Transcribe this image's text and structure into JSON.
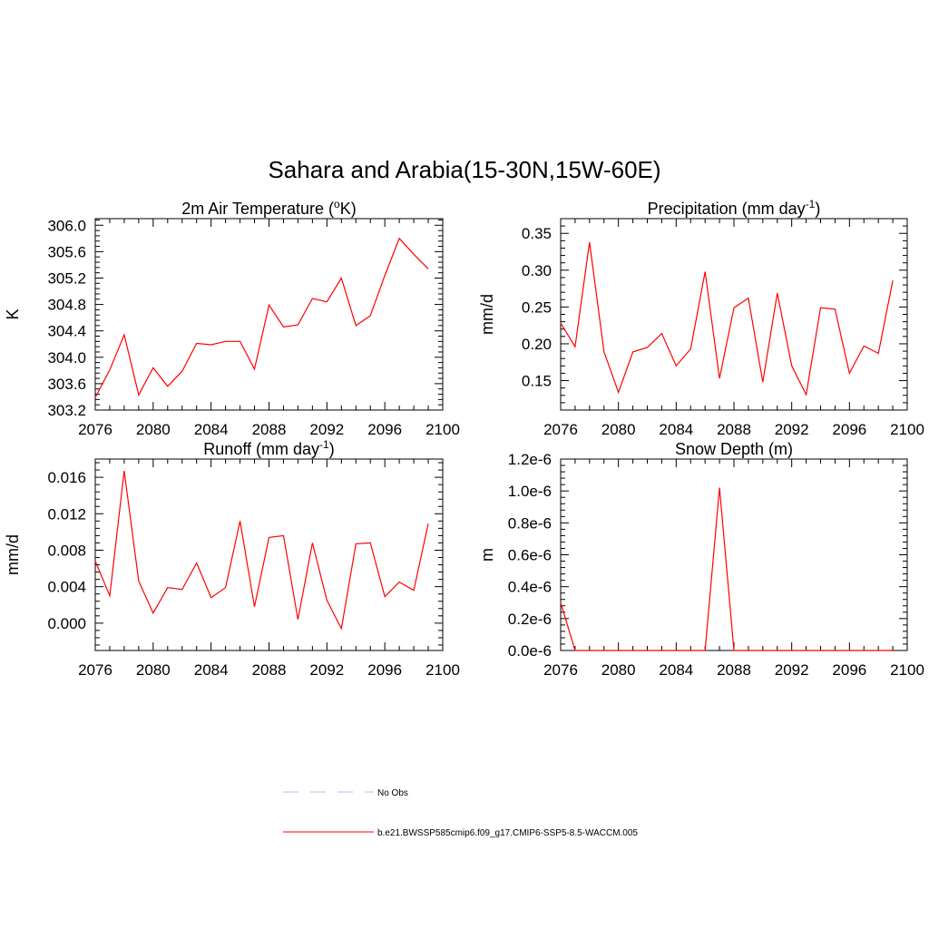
{
  "title": "Sahara and Arabia(15-30N,15W-60E)",
  "colors": {
    "model": "#ff0000",
    "obs": "#b9b9ee",
    "axis": "#000000"
  },
  "legend": [
    {
      "label": "No Obs",
      "style": "dashed",
      "color": "#b9b9ee"
    },
    {
      "label": "b.e21.BWSSP585cmip6.f09_g17.CMIP6-SSP5-8.5-WACCM.005",
      "style": "solid",
      "color": "#ff0000"
    }
  ],
  "chart_data": [
    {
      "type": "line",
      "title": "2m Air Temperature (",
      "title_sup": "o",
      "title_tail": "K)",
      "ylabel": "K",
      "xlim": [
        2076,
        2100
      ],
      "ylim": [
        303.2,
        306.1
      ],
      "xticks": [
        2076,
        2080,
        2084,
        2088,
        2092,
        2096,
        2100
      ],
      "yticks": [
        "303.2",
        "303.6",
        "304.0",
        "304.4",
        "304.8",
        "305.2",
        "305.6",
        "306.0"
      ],
      "x": [
        2076,
        2077,
        2078,
        2079,
        2080,
        2081,
        2082,
        2083,
        2084,
        2085,
        2086,
        2087,
        2088,
        2089,
        2090,
        2091,
        2092,
        2093,
        2094,
        2095,
        2096,
        2097,
        2098,
        2099
      ],
      "series": [
        {
          "values": [
            303.39,
            303.81,
            304.34,
            303.43,
            303.84,
            303.56,
            303.79,
            304.21,
            304.19,
            304.24,
            304.24,
            303.82,
            304.79,
            304.46,
            304.49,
            304.89,
            304.84,
            305.2,
            304.48,
            304.63,
            305.24,
            305.8,
            305.56,
            305.34
          ]
        }
      ]
    },
    {
      "type": "line",
      "title": "Precipitation (mm day",
      "title_sup": "-1",
      "title_tail": ")",
      "ylabel": "mm/d",
      "xlim": [
        2076,
        2100
      ],
      "ylim": [
        0.11,
        0.37
      ],
      "xticks": [
        2076,
        2080,
        2084,
        2088,
        2092,
        2096,
        2100
      ],
      "yticks": [
        "0.15",
        "0.20",
        "0.25",
        "0.30",
        "0.35"
      ],
      "x": [
        2076,
        2077,
        2078,
        2079,
        2080,
        2081,
        2082,
        2083,
        2084,
        2085,
        2086,
        2087,
        2088,
        2089,
        2090,
        2091,
        2092,
        2093,
        2094,
        2095,
        2096,
        2097,
        2098,
        2099
      ],
      "series": [
        {
          "values": [
            0.228,
            0.196,
            0.338,
            0.189,
            0.134,
            0.189,
            0.195,
            0.214,
            0.17,
            0.193,
            0.298,
            0.153,
            0.249,
            0.262,
            0.148,
            0.269,
            0.17,
            0.131,
            0.249,
            0.247,
            0.16,
            0.197,
            0.187,
            0.286
          ]
        }
      ]
    },
    {
      "type": "line",
      "title": "Runoff (mm day",
      "title_sup": "-1",
      "title_tail": ")",
      "ylabel": "mm/d",
      "xlim": [
        2076,
        2100
      ],
      "ylim": [
        -0.003,
        0.018
      ],
      "xticks": [
        2076,
        2080,
        2084,
        2088,
        2092,
        2096,
        2100
      ],
      "yticks": [
        "0.000",
        "0.004",
        "0.008",
        "0.012",
        "0.016"
      ],
      "x": [
        2076,
        2077,
        2078,
        2079,
        2080,
        2081,
        2082,
        2083,
        2084,
        2085,
        2086,
        2087,
        2088,
        2089,
        2090,
        2091,
        2092,
        2093,
        2094,
        2095,
        2096,
        2097,
        2098,
        2099
      ],
      "series": [
        {
          "values": [
            0.0068,
            0.003,
            0.0167,
            0.0046,
            0.0011,
            0.0039,
            0.0037,
            0.0066,
            0.0028,
            0.0039,
            0.0112,
            0.0018,
            0.0094,
            0.0096,
            0.0004,
            0.0088,
            0.0025,
            -0.0006,
            0.0087,
            0.0088,
            0.0029,
            0.0045,
            0.0036,
            0.0109
          ]
        }
      ]
    },
    {
      "type": "line",
      "title": "Snow Depth (m)",
      "title_sup": "",
      "title_tail": "",
      "ylabel": "m",
      "xlim": [
        2076,
        2100
      ],
      "ylim": [
        0,
        1.2e-06
      ],
      "xticks": [
        2076,
        2080,
        2084,
        2088,
        2092,
        2096,
        2100
      ],
      "yticks": [
        "0.0e-6",
        "0.2e-6",
        "0.4e-6",
        "0.6e-6",
        "0.8e-6",
        "1.0e-6",
        "1.2e-6"
      ],
      "x": [
        2076,
        2077,
        2078,
        2079,
        2080,
        2081,
        2082,
        2083,
        2084,
        2085,
        2086,
        2087,
        2088,
        2089,
        2090,
        2091,
        2092,
        2093,
        2094,
        2095,
        2096,
        2097,
        2098,
        2099
      ],
      "series": [
        {
          "values": [
            3e-07,
            0,
            0,
            0,
            0,
            0,
            0,
            0,
            0,
            0,
            0,
            1.02e-06,
            0,
            0,
            0,
            0,
            0,
            0,
            0,
            0,
            0,
            0,
            0,
            0
          ]
        }
      ]
    }
  ]
}
